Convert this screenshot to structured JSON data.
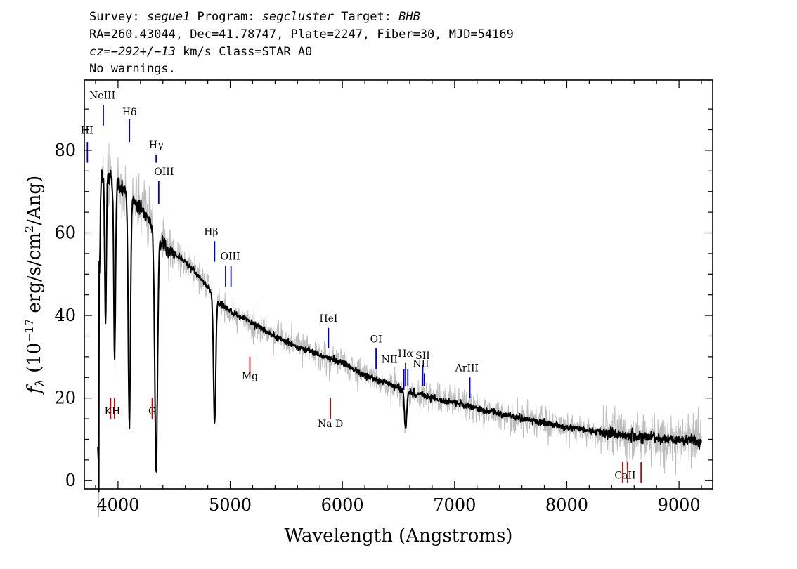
{
  "header": {
    "line1": [
      {
        "t": "Survey: ",
        "i": false
      },
      {
        "t": "segue1",
        "i": true
      },
      {
        "t": " Program: ",
        "i": false
      },
      {
        "t": "segcluster",
        "i": true
      },
      {
        "t": " Target: ",
        "i": false
      },
      {
        "t": "BHB",
        "i": true
      }
    ],
    "line2": "RA=260.43044, Dec=41.78747, Plate=2247, Fiber=30, MJD=54169",
    "line3": [
      {
        "t": "cz=−292+/−13",
        "i": true
      },
      {
        "t": " km/s Class=STAR A0",
        "i": false
      }
    ],
    "line4": "No warnings."
  },
  "chart_data": {
    "type": "line",
    "xlabel": "Wavelength (Angstroms)",
    "ylabel": "f_λ (10^-17 erg/s/cm^2/Ang)",
    "ylabel_parts": {
      "f": "f",
      "sub": "λ",
      "pre": " (10",
      "exp1": "−17",
      "mid": " erg/s/cm",
      "exp2": "2",
      "post": "/Ang)"
    },
    "xlim": [
      3700,
      9300
    ],
    "ylim": [
      -2,
      97
    ],
    "xticks": [
      4000,
      5000,
      6000,
      7000,
      8000,
      9000
    ],
    "yticks": [
      0,
      20,
      40,
      60,
      80
    ],
    "colors": {
      "flux": "#000000",
      "noise": "#bdbdbd",
      "emission": "#0000cc",
      "absorption": "#cc0000"
    },
    "continuum": [
      [
        3830,
        72
      ],
      [
        3900,
        74
      ],
      [
        4000,
        72
      ],
      [
        4100,
        69
      ],
      [
        4200,
        66
      ],
      [
        4300,
        62
      ],
      [
        4400,
        57
      ],
      [
        4500,
        55
      ],
      [
        4600,
        53
      ],
      [
        4700,
        50
      ],
      [
        4800,
        47
      ],
      [
        4900,
        43
      ],
      [
        5000,
        41
      ],
      [
        5200,
        38
      ],
      [
        5400,
        35
      ],
      [
        5600,
        32.5
      ],
      [
        5800,
        30.5
      ],
      [
        6000,
        28.5
      ],
      [
        6200,
        25.5
      ],
      [
        6400,
        23.5
      ],
      [
        6600,
        21.5
      ],
      [
        6800,
        20
      ],
      [
        7000,
        19
      ],
      [
        7200,
        17.5
      ],
      [
        7500,
        15.5
      ],
      [
        8000,
        13
      ],
      [
        8500,
        11
      ],
      [
        9000,
        10
      ],
      [
        9200,
        9.5
      ]
    ],
    "absorption_features": [
      {
        "center": 3835,
        "depth": 22,
        "sigma": 6
      },
      {
        "center": 3889,
        "depth": 36,
        "sigma": 7
      },
      {
        "center": 3970,
        "depth": 42,
        "sigma": 8
      },
      {
        "center": 4101,
        "depth": 55,
        "sigma": 10
      },
      {
        "center": 4340,
        "depth": 58,
        "sigma": 12
      },
      {
        "center": 4861,
        "depth": 31,
        "sigma": 10
      },
      {
        "center": 6563,
        "depth": 9,
        "sigma": 10
      }
    ],
    "emission_lines": [
      {
        "label": "HI",
        "x": 3727,
        "y0": 77,
        "y1": 82,
        "lx": 3723,
        "ly": 84
      },
      {
        "label": "NeIII",
        "x": 3869,
        "y0": 86,
        "y1": 91,
        "lx": 3860,
        "ly": 92.5
      },
      {
        "label": "Hδ",
        "x": 4102,
        "y0": 82,
        "y1": 87.5,
        "lx": 4102,
        "ly": 88.5
      },
      {
        "label": "Hγ",
        "x": 4340,
        "y0": 77,
        "y1": 79,
        "lx": 4340,
        "ly": 80.5
      },
      {
        "label": "OIII",
        "x": 4363,
        "y0": 67,
        "y1": 72.5,
        "lx": 4410,
        "ly": 74
      },
      {
        "label": "Hβ",
        "x": 4861,
        "y0": 53,
        "y1": 58,
        "lx": 4830,
        "ly": 59.5
      },
      {
        "label": "OIII",
        "x": 4959,
        "y0": 47,
        "y1": 52,
        "lx": 5000,
        "ly": 53.5
      },
      {
        "label": "",
        "x": 5007,
        "y0": 47,
        "y1": 52,
        "lx": 0,
        "ly": 0
      },
      {
        "label": "HeI",
        "x": 5876,
        "y0": 32,
        "y1": 37,
        "lx": 5876,
        "ly": 38.5
      },
      {
        "label": "OI",
        "x": 6300,
        "y0": 27,
        "y1": 32,
        "lx": 6300,
        "ly": 33.5
      },
      {
        "label": "NII",
        "x": 6548,
        "y0": 22,
        "y1": 27,
        "lx": 6420,
        "ly": 28.5
      },
      {
        "label": "Hα",
        "x": 6563,
        "y0": 23,
        "y1": 28.5,
        "lx": 6563,
        "ly": 30
      },
      {
        "label": "",
        "x": 6583,
        "y0": 23,
        "y1": 27,
        "lx": 0,
        "ly": 0
      },
      {
        "label": "SII",
        "x": 6716,
        "y0": 23,
        "y1": 28,
        "lx": 6716,
        "ly": 29.5
      },
      {
        "label": "NII",
        "x": 6731,
        "y0": 23,
        "y1": 26,
        "lx": 6700,
        "ly": 27.5
      },
      {
        "label": "ArIII",
        "x": 7136,
        "y0": 20,
        "y1": 25,
        "lx": 7110,
        "ly": 26.5
      }
    ],
    "absorption_lines": [
      {
        "label": "",
        "x": 3934,
        "y0": 20,
        "y1": 15
      },
      {
        "label": "KH",
        "x": 3969,
        "y0": 20,
        "y1": 15,
        "lx": 3950,
        "ly": 16
      },
      {
        "label": "G",
        "x": 4305,
        "y0": 20,
        "y1": 15,
        "lx": 4305,
        "ly": 16
      },
      {
        "label": "Mg",
        "x": 5175,
        "y0": 30,
        "y1": 25,
        "lx": 5175,
        "ly": 24.5
      },
      {
        "label": "Na D",
        "x": 5893,
        "y0": 20,
        "y1": 15,
        "lx": 5893,
        "ly": 13
      },
      {
        "label": "",
        "x": 8498,
        "y0": 4.5,
        "y1": -0.5
      },
      {
        "label": "CaII",
        "x": 8542,
        "y0": 4.5,
        "y1": -0.5,
        "lx": 8520,
        "ly": 0.5
      },
      {
        "label": "",
        "x": 8662,
        "y0": 4.5,
        "y1": -0.5
      }
    ]
  }
}
